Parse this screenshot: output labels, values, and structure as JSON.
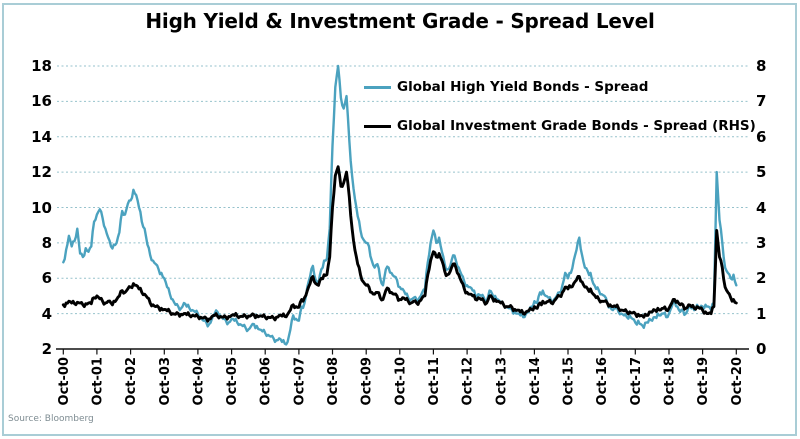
{
  "title": "High Yield & Investment Grade - Spread Level",
  "source": "Source: Bloomberg",
  "legend": [
    {
      "label": "Global High Yield Bonds - Spread",
      "color": "#4BA2BF"
    },
    {
      "label": "Global Investment Grade Bonds - Spread (RHS)",
      "color": "#000000"
    }
  ],
  "colors": {
    "high_yield_line": "#4BA2BF",
    "investment_grade_line": "#000000",
    "gridline": "#96C2CC",
    "axis": "#111111",
    "card_border": "#A9CDD6",
    "title_text": "#000000",
    "source_text": "#7E8C92"
  },
  "chart_data": {
    "type": "line",
    "title": "High Yield & Investment Grade - Spread Level",
    "x_unit": "monthly",
    "x_start": "Oct-2000",
    "x_end": "Oct-2020",
    "x_tick_labels": [
      "Oct-00",
      "Oct-01",
      "Oct-02",
      "Oct-03",
      "Oct-04",
      "Oct-05",
      "Oct-06",
      "Oct-07",
      "Oct-08",
      "Oct-09",
      "Oct-10",
      "Oct-11",
      "Oct-12",
      "Oct-13",
      "Oct-14",
      "Oct-15",
      "Oct-16",
      "Oct-17",
      "Oct-18",
      "Oct-19",
      "Oct-20"
    ],
    "left_axis": {
      "range": [
        2,
        18
      ],
      "ticks": [
        18,
        16,
        14,
        12,
        10,
        8,
        6,
        4,
        2
      ]
    },
    "right_axis": {
      "range": [
        0,
        8
      ],
      "ticks": [
        8,
        7,
        6,
        5,
        4,
        3,
        2,
        1,
        0
      ]
    },
    "grid": true,
    "legend_position": "top-center-inside",
    "series": [
      {
        "name": "Global High Yield Bonds - Spread",
        "axis": "left",
        "color": "#4BA2BF",
        "values": [
          6.9,
          7.6,
          8.4,
          7.8,
          8.1,
          8.8,
          7.4,
          7.2,
          7.7,
          7.5,
          7.8,
          9.2,
          9.6,
          9.9,
          9.4,
          8.8,
          8.3,
          7.8,
          7.9,
          8.0,
          8.6,
          9.8,
          9.6,
          10.2,
          10.4,
          11.0,
          10.7,
          10.0,
          9.2,
          8.8,
          7.9,
          7.3,
          7.0,
          6.8,
          6.5,
          6.3,
          6.0,
          5.5,
          5.1,
          4.8,
          4.5,
          4.4,
          4.3,
          4.6,
          4.4,
          4.3,
          4.2,
          4.1,
          4.0,
          3.8,
          3.6,
          3.5,
          3.4,
          3.7,
          4.0,
          4.1,
          3.9,
          3.7,
          3.6,
          3.5,
          3.7,
          3.6,
          3.5,
          3.4,
          3.3,
          3.2,
          3.1,
          3.3,
          3.4,
          3.3,
          3.1,
          3.0,
          2.9,
          2.8,
          2.7,
          2.6,
          2.5,
          2.6,
          2.4,
          2.3,
          2.4,
          3.1,
          3.9,
          3.7,
          3.6,
          4.4,
          4.6,
          5.5,
          6.1,
          6.7,
          5.9,
          5.7,
          6.5,
          7.0,
          7.1,
          8.8,
          13.5,
          16.8,
          18.0,
          16.2,
          15.6,
          16.3,
          13.8,
          11.8,
          10.5,
          9.5,
          8.7,
          8.2,
          8.0,
          7.8,
          7.0,
          6.6,
          6.8,
          6.0,
          5.6,
          6.5,
          6.6,
          6.3,
          6.1,
          5.9,
          5.5,
          5.4,
          5.1,
          4.9,
          4.8,
          4.9,
          4.8,
          4.9,
          5.2,
          5.4,
          6.9,
          8.0,
          8.7,
          8.0,
          8.3,
          7.5,
          6.8,
          6.5,
          6.7,
          7.3,
          7.0,
          6.6,
          6.2,
          5.8,
          5.6,
          5.5,
          5.3,
          5.0,
          5.1,
          5.0,
          4.9,
          4.7,
          5.3,
          5.1,
          5.0,
          4.8,
          4.6,
          4.5,
          4.4,
          4.3,
          4.2,
          4.1,
          4.0,
          3.9,
          3.8,
          4.0,
          4.1,
          4.4,
          4.7,
          4.6,
          5.2,
          5.3,
          5.0,
          4.9,
          4.7,
          4.8,
          5.0,
          5.2,
          5.6,
          6.3,
          6.0,
          6.3,
          7.0,
          7.6,
          8.3,
          7.3,
          6.6,
          6.4,
          6.3,
          5.7,
          5.4,
          5.3,
          5.1,
          5.0,
          4.6,
          4.4,
          4.2,
          4.3,
          4.1,
          4.0,
          3.9,
          3.8,
          3.9,
          3.7,
          3.5,
          3.6,
          3.4,
          3.2,
          3.5,
          3.7,
          3.6,
          3.8,
          4.0,
          3.9,
          4.0,
          3.8,
          4.0,
          4.4,
          4.7,
          4.4,
          4.1,
          4.2,
          4.0,
          4.4,
          4.3,
          4.2,
          4.5,
          4.3,
          4.4,
          4.5,
          4.4,
          4.2,
          4.6,
          12.0,
          9.3,
          8.0,
          6.6,
          6.3,
          6.0,
          6.2,
          5.6
        ]
      },
      {
        "name": "Global Investment Grade Bonds - Spread (RHS)",
        "axis": "right",
        "color": "#000000",
        "values": [
          1.25,
          1.3,
          1.35,
          1.3,
          1.28,
          1.32,
          1.3,
          1.25,
          1.28,
          1.3,
          1.28,
          1.45,
          1.5,
          1.42,
          1.35,
          1.3,
          1.35,
          1.3,
          1.35,
          1.4,
          1.5,
          1.65,
          1.6,
          1.7,
          1.75,
          1.85,
          1.8,
          1.7,
          1.6,
          1.55,
          1.45,
          1.3,
          1.25,
          1.2,
          1.18,
          1.15,
          1.12,
          1.08,
          1.05,
          1.0,
          0.98,
          1.0,
          0.98,
          1.0,
          0.97,
          0.95,
          0.95,
          0.93,
          0.92,
          0.9,
          0.88,
          0.87,
          0.85,
          0.92,
          0.95,
          0.93,
          0.92,
          0.9,
          0.9,
          0.92,
          0.95,
          0.95,
          0.93,
          0.92,
          0.92,
          0.93,
          0.93,
          0.95,
          0.97,
          0.95,
          0.93,
          0.92,
          0.9,
          0.9,
          0.89,
          0.88,
          0.9,
          0.95,
          0.93,
          0.92,
          0.98,
          1.1,
          1.25,
          1.2,
          1.18,
          1.4,
          1.45,
          1.65,
          1.85,
          2.05,
          1.85,
          1.8,
          2.0,
          2.1,
          2.1,
          2.6,
          4.0,
          4.9,
          5.15,
          4.6,
          4.7,
          5.0,
          4.3,
          3.4,
          2.8,
          2.4,
          2.1,
          1.9,
          1.8,
          1.75,
          1.6,
          1.55,
          1.6,
          1.45,
          1.4,
          1.65,
          1.7,
          1.6,
          1.55,
          1.5,
          1.4,
          1.45,
          1.4,
          1.35,
          1.3,
          1.35,
          1.3,
          1.35,
          1.45,
          1.5,
          2.1,
          2.5,
          2.75,
          2.6,
          2.7,
          2.5,
          2.2,
          2.1,
          2.2,
          2.4,
          2.3,
          2.1,
          1.9,
          1.7,
          1.6,
          1.55,
          1.5,
          1.4,
          1.45,
          1.4,
          1.35,
          1.3,
          1.5,
          1.45,
          1.4,
          1.35,
          1.3,
          1.25,
          1.2,
          1.2,
          1.18,
          1.12,
          1.1,
          1.05,
          1.0,
          1.05,
          1.08,
          1.12,
          1.2,
          1.15,
          1.3,
          1.35,
          1.3,
          1.35,
          1.3,
          1.35,
          1.45,
          1.5,
          1.6,
          1.75,
          1.7,
          1.75,
          1.85,
          1.95,
          2.05,
          1.9,
          1.75,
          1.7,
          1.7,
          1.55,
          1.45,
          1.4,
          1.35,
          1.35,
          1.3,
          1.25,
          1.2,
          1.2,
          1.15,
          1.1,
          1.08,
          1.05,
          1.05,
          1.02,
          1.0,
          0.98,
          0.95,
          0.9,
          0.95,
          1.05,
          1.05,
          1.1,
          1.15,
          1.1,
          1.15,
          1.1,
          1.15,
          1.3,
          1.4,
          1.35,
          1.25,
          1.25,
          1.15,
          1.25,
          1.2,
          1.15,
          1.2,
          1.15,
          1.1,
          1.05,
          1.0,
          1.0,
          1.2,
          3.35,
          2.6,
          2.3,
          1.75,
          1.6,
          1.45,
          1.4,
          1.3
        ]
      }
    ]
  }
}
